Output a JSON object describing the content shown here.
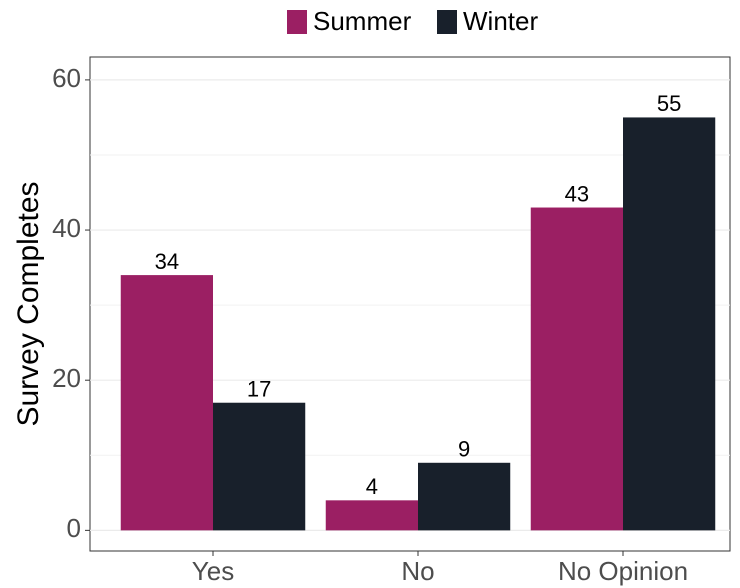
{
  "chart_data": {
    "type": "bar",
    "categories": [
      "Yes",
      "No",
      "No Opinion"
    ],
    "series": [
      {
        "name": "Summer",
        "color": "#9b1f63",
        "values": [
          34,
          4,
          43
        ]
      },
      {
        "name": "Winter",
        "color": "#18202b",
        "values": [
          17,
          9,
          55
        ]
      }
    ],
    "y_label": "Survey Completes",
    "ylim": [
      -2.75,
      63.05
    ],
    "yticks": [
      0,
      20,
      40,
      60
    ],
    "minor_yticks": [
      10,
      30,
      50
    ],
    "grid": true,
    "legend": "top"
  }
}
